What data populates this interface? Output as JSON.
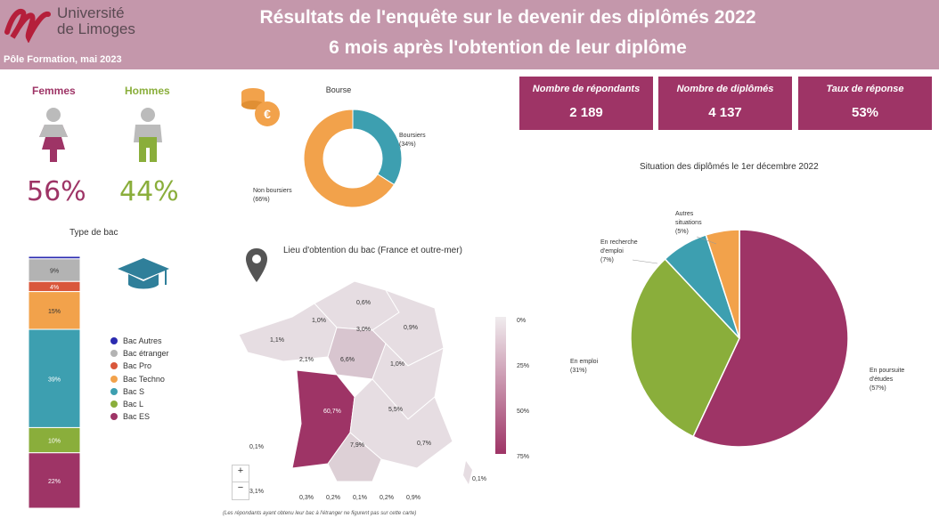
{
  "header": {
    "university": [
      "Université",
      "de Limoges"
    ],
    "pole": "Pôle Formation, mai 2023",
    "title_line1": "Résultats de l'enquête sur le devenir des diplômés 2022",
    "title_line2": "6 mois après l'obtention de leur diplôme"
  },
  "kpis": [
    {
      "label": "Nombre de répondants",
      "value": "2 189"
    },
    {
      "label": "Nombre de diplômés",
      "value": "4 137"
    },
    {
      "label": "Taux de réponse",
      "value": "53%"
    }
  ],
  "gender": {
    "femmes_label": "Femmes",
    "femmes_pct": "56%",
    "hommes_label": "Hommes",
    "hommes_pct": "44%"
  },
  "colors": {
    "accent": "#9e3466",
    "header": "#c497ab",
    "hommes": "#8aae3b",
    "teal": "#3d9fb0",
    "orange": "#f2a24b"
  },
  "icons": [
    "university-logo",
    "coins-icon",
    "woman-icon",
    "man-icon",
    "graduation-cap-icon",
    "location-pin-icon"
  ],
  "map": {
    "title": "Lieu d'obtention du bac (France et outre-mer)",
    "scale_labels": [
      "0%",
      "25%",
      "50%",
      "75%"
    ],
    "zoom_in": "+",
    "zoom_out": "−",
    "footnote": "(Les répondants ayant obtenu leur bac à l'étranger ne figurent pas sur cette carte)"
  },
  "chart_data": [
    {
      "type": "pie",
      "title": "Bourse",
      "donut": true,
      "slices": [
        {
          "label": "Boursiers",
          "value": 34,
          "display": "(34%)",
          "color": "#3d9fb0"
        },
        {
          "label": "Non boursiers",
          "value": 66,
          "display": "(66%)",
          "color": "#f2a24b"
        }
      ]
    },
    {
      "type": "bar",
      "stacked": true,
      "title": "Type de bac",
      "segments": [
        {
          "label": "Bac Autres",
          "value": 1,
          "text": "",
          "color": "#2b2bb0"
        },
        {
          "label": "Bac étranger",
          "value": 9,
          "text": "9%",
          "color": "#b3b3b3"
        },
        {
          "label": "Bac Pro",
          "value": 4,
          "text": "4%",
          "color": "#d9573b"
        },
        {
          "label": "Bac Techno",
          "value": 15,
          "text": "15%",
          "color": "#f2a24b"
        },
        {
          "label": "Bac S",
          "value": 39,
          "text": "39%",
          "color": "#3d9fb0"
        },
        {
          "label": "Bac L",
          "value": 10,
          "text": "10%",
          "color": "#8aae3b"
        },
        {
          "label": "Bac ES",
          "value": 22,
          "text": "22%",
          "color": "#9e3466"
        }
      ]
    },
    {
      "type": "pie",
      "title": "Situation des diplômés le 1er décembre 2022",
      "slices": [
        {
          "label": [
            "En poursuite",
            "d'études"
          ],
          "value": 57,
          "display": "(57%)",
          "color": "#9e3466"
        },
        {
          "label": [
            "En emploi"
          ],
          "value": 31,
          "display": "(31%)",
          "color": "#8aae3b"
        },
        {
          "label": [
            "En recherche",
            "d'emploi"
          ],
          "value": 7,
          "display": "(7%)",
          "color": "#3d9fb0"
        },
        {
          "label": [
            "Autres",
            "situations"
          ],
          "value": 5,
          "display": "(5%)",
          "color": "#f2a24b"
        }
      ]
    },
    {
      "type": "heatmap",
      "title": "Lieu d'obtention du bac (France et outre-mer)",
      "regions": [
        {
          "name": "Hauts-de-France",
          "value": 0.6,
          "text": "0,6%"
        },
        {
          "name": "Normandie",
          "value": 1.0,
          "text": "1,0%"
        },
        {
          "name": "Île-de-France",
          "value": 3.0,
          "text": "3,0%"
        },
        {
          "name": "Grand Est",
          "value": 0.9,
          "text": "0,9%"
        },
        {
          "name": "Bretagne",
          "value": 1.1,
          "text": "1,1%"
        },
        {
          "name": "Pays de la Loire",
          "value": 2.1,
          "text": "2,1%"
        },
        {
          "name": "Centre-Val de Loire",
          "value": 6.6,
          "text": "6,6%"
        },
        {
          "name": "Bourgogne-Franche-Comté",
          "value": 1.0,
          "text": "1,0%"
        },
        {
          "name": "Nouvelle-Aquitaine",
          "value": 60.7,
          "text": "60,7%"
        },
        {
          "name": "Auvergne-Rhône-Alpes",
          "value": 5.5,
          "text": "5,5%"
        },
        {
          "name": "Occitanie",
          "value": 7.9,
          "text": "7,9%"
        },
        {
          "name": "Provence-Alpes-Côte d'Azur",
          "value": 0.7,
          "text": "0,7%"
        },
        {
          "name": "Corse",
          "value": 0.1,
          "text": "0,1%"
        },
        {
          "name": "Atlantique",
          "value": 0.1,
          "text": "0,1%"
        },
        {
          "name": "Outre-mer 1",
          "value": 3.1,
          "text": "3,1%"
        },
        {
          "name": "Outre-mer 2",
          "value": 0.3,
          "text": "0,3%"
        },
        {
          "name": "Outre-mer 3",
          "value": 0.2,
          "text": "0,2%"
        },
        {
          "name": "Outre-mer 4",
          "value": 0.1,
          "text": "0,1%"
        },
        {
          "name": "Outre-mer 5",
          "value": 0.2,
          "text": "0,2%"
        },
        {
          "name": "Outre-mer 6",
          "value": 0.9,
          "text": "0,9%"
        }
      ],
      "scale_range": [
        0,
        75
      ]
    }
  ]
}
